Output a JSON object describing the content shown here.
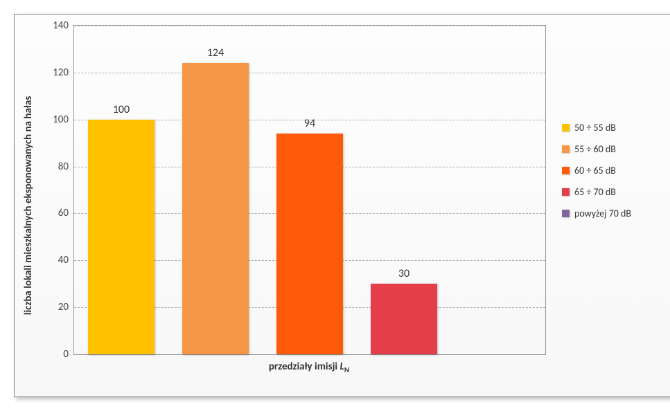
{
  "chart": {
    "type": "bar",
    "categories": [
      "50 ÷ 55 dB",
      "55 ÷ 60 dB",
      "60 ÷ 65 dB",
      "65 ÷ 70 dB",
      "powyżej 70 dB"
    ],
    "values": [
      100,
      124,
      94,
      30,
      0
    ],
    "bar_colors": [
      "#ffc000",
      "#f79646",
      "#ff5a09",
      "#e33e4a",
      "#8064a2"
    ],
    "value_labels": [
      "100",
      "124",
      "94",
      "30",
      ""
    ],
    "ylim": [
      0,
      140
    ],
    "ytick_step": 20,
    "yticks": [
      0,
      20,
      40,
      60,
      80,
      100,
      120,
      140
    ],
    "ytick_labels": [
      "0",
      "20",
      "40",
      "60",
      "80",
      "100",
      "120",
      "140"
    ],
    "y_axis_title": "liczba lokali mieszkalnych eksponowanych na hałas",
    "x_axis_title_main": "przedziały imisji ",
    "x_axis_title_var": "L",
    "x_axis_title_sub": "N",
    "grid_color": "#aaaaaa",
    "border_color": "#999999",
    "background_color": "#fdfdfd",
    "bar_width_ratio": 0.7,
    "label_fontsize": 15,
    "value_fontsize": 16,
    "legend_fontsize": 14,
    "legend": [
      {
        "color": "#ffc000",
        "label": "50 ÷ 55 dB"
      },
      {
        "color": "#f79646",
        "label": "55 ÷ 60 dB"
      },
      {
        "color": "#ff5a09",
        "label": "60 ÷ 65 dB"
      },
      {
        "color": "#e33e4a",
        "label": "65 ÷ 70 dB"
      },
      {
        "color": "#8064a2",
        "label": "powyżej 70 dB"
      }
    ]
  }
}
